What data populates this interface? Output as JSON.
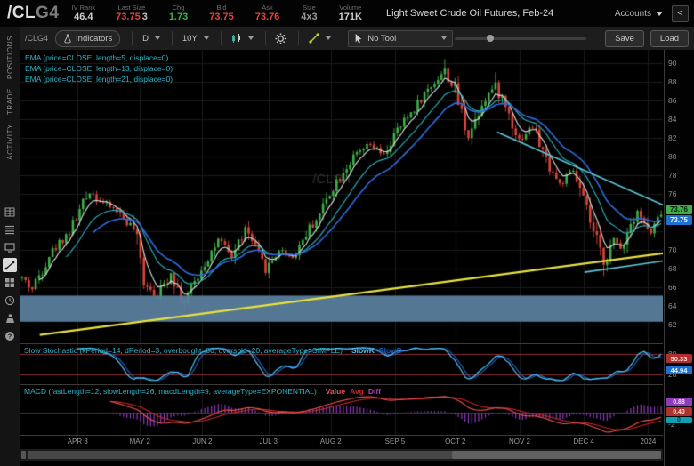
{
  "header": {
    "symbol": "/CL",
    "contract": "G4",
    "fields": [
      {
        "label": "IV Rank",
        "parts": [
          {
            "text": "46.4",
            "color": "#cfcfcf"
          }
        ]
      },
      {
        "label": "Last Size",
        "parts": [
          {
            "text": "73.75",
            "color": "#e0483a"
          },
          {
            "text": "3",
            "color": "#c2c2c2"
          }
        ]
      },
      {
        "label": "Chg",
        "parts": [
          {
            "text": "1.73",
            "color": "#3cb54a"
          }
        ]
      },
      {
        "label": "Bid",
        "parts": [
          {
            "text": "73.75",
            "color": "#e0483a"
          }
        ]
      },
      {
        "label": "Ask",
        "parts": [
          {
            "text": "73.76",
            "color": "#e0483a"
          }
        ]
      },
      {
        "label": "Size",
        "parts": [
          {
            "text": "4x3",
            "color": "#9a9a9a"
          }
        ]
      },
      {
        "label": "Volume",
        "parts": [
          {
            "text": "171K",
            "color": "#cfcfcf"
          }
        ]
      }
    ],
    "title": "Light Sweet Crude Oil Futures, Feb-24",
    "accounts_label": "Accounts",
    "collapse_label": "<"
  },
  "toolbar": {
    "symbol": "/CLG4",
    "indicators_label": "Indicators",
    "aggregation": "D",
    "range": "10Y",
    "no_tool_label": "No Tool",
    "save_label": "Save",
    "load_label": "Load"
  },
  "sidebar": {
    "tabs": [
      "POSITIONS",
      "TRADE",
      "ACTIVITY"
    ],
    "icons": [
      "table-icon",
      "list-icon",
      "monitor-icon",
      "chart-icon",
      "grid-icon",
      "clock-icon",
      "presenter-icon",
      "help-icon"
    ]
  },
  "chart": {
    "watermark": "/CLG4",
    "ema_labels": [
      "EMA (price=CLOSE, length=5, displace=0)",
      "EMA (price=CLOSE, length=13, displace=0)",
      "EMA (price=CLOSE, length=21, displace=0)"
    ],
    "stoch_label": "Slow Stochastic (kPeriod=14, dPeriod=3, overbought=80, oversold=20, averageType=SIMPLE)",
    "stoch_legend": [
      {
        "text": "SlowK",
        "color": "#4fc3f7"
      },
      {
        "text": "SlowD",
        "color": "#1e5fb8"
      }
    ],
    "macd_label": "MACD (fastLength=12, slowLength=26, macdLength=9, averageType=EXPONENTIAL)",
    "macd_legend": [
      {
        "text": "Value",
        "color": "#ef5350"
      },
      {
        "text": "Avg",
        "color": "#c62828"
      },
      {
        "text": "Diff",
        "color": "#ab47bc"
      }
    ],
    "axis": {
      "price_ticks": [
        90,
        88,
        86,
        84,
        82,
        80,
        78,
        76,
        70,
        68,
        66,
        64,
        62
      ],
      "ask_badge": {
        "value": "73.76",
        "color": "#3fae49",
        "text_color": "#05230a"
      },
      "last_badge": {
        "value": "73.75",
        "color": "#1f6fd0",
        "text_color": "#eaf2ff"
      },
      "stoch_ticks": [
        {
          "v": 80,
          "label": "80"
        },
        {
          "v": 20,
          "label": "20"
        }
      ],
      "stoch_badges": [
        {
          "value": 50.33,
          "label": "50.33",
          "color": "#b03030",
          "text_color": "#ffe2e2"
        },
        {
          "value": 44.94,
          "label": "44.94",
          "color": "#1f6fd0",
          "text_color": "#eaf2ff"
        }
      ],
      "macd_ticks": [
        {
          "v": 2,
          "label": "2"
        },
        {
          "v": -2,
          "label": "-2"
        }
      ],
      "macd_badges": [
        {
          "label": "0.88",
          "color": "#8e3bbf",
          "text_color": "#f3e5ff"
        },
        {
          "label": "0.40",
          "color": "#b03030",
          "text_color": "#ffe2e2"
        },
        {
          "label": "0",
          "color": "#0e9fb5",
          "text_color": "#03303a"
        }
      ]
    },
    "x_labels": [
      {
        "label": "APR 3",
        "f": 0.089
      },
      {
        "label": "MAY 2",
        "f": 0.186
      },
      {
        "label": "JUN 2",
        "f": 0.283
      },
      {
        "label": "JUL 3",
        "f": 0.386
      },
      {
        "label": "AUG 2",
        "f": 0.483
      },
      {
        "label": "SEP 5",
        "f": 0.583
      },
      {
        "label": "OCT 2",
        "f": 0.677
      },
      {
        "label": "NOV 2",
        "f": 0.777
      },
      {
        "label": "DEC 4",
        "f": 0.877
      },
      {
        "label": "2024",
        "f": 0.977
      }
    ]
  },
  "chart_data": {
    "type": "candlestick",
    "symbol": "/CLG4",
    "n": 190,
    "seed": 42,
    "y_min": 60.0,
    "y_max": 91.4,
    "last_close": 73.75,
    "price_anchors": [
      [
        0,
        67.0
      ],
      [
        3,
        65.8
      ],
      [
        8,
        69.5
      ],
      [
        14,
        72.0
      ],
      [
        20,
        76.3
      ],
      [
        24,
        75.0
      ],
      [
        28,
        74.2
      ],
      [
        33,
        72.2
      ],
      [
        36,
        66.8
      ],
      [
        40,
        65.0
      ],
      [
        44,
        67.6
      ],
      [
        48,
        64.3
      ],
      [
        53,
        68.0
      ],
      [
        58,
        71.0
      ],
      [
        62,
        69.2
      ],
      [
        66,
        72.3
      ],
      [
        72,
        67.8
      ],
      [
        76,
        70.0
      ],
      [
        80,
        69.2
      ],
      [
        84,
        71.8
      ],
      [
        88,
        73.8
      ],
      [
        91,
        76.2
      ],
      [
        95,
        78.5
      ],
      [
        99,
        80.2
      ],
      [
        103,
        81.2
      ],
      [
        107,
        80.0
      ],
      [
        110,
        82.2
      ],
      [
        114,
        84.2
      ],
      [
        118,
        86.2
      ],
      [
        122,
        88.0
      ],
      [
        125,
        89.2
      ],
      [
        128,
        87.0
      ],
      [
        132,
        82.2
      ],
      [
        136,
        85.8
      ],
      [
        140,
        87.6
      ],
      [
        144,
        84.6
      ],
      [
        147,
        81.8
      ],
      [
        151,
        83.2
      ],
      [
        155,
        79.6
      ],
      [
        159,
        77.0
      ],
      [
        163,
        78.4
      ],
      [
        166,
        75.2
      ],
      [
        169,
        71.8
      ],
      [
        172,
        68.6
      ],
      [
        175,
        71.0
      ],
      [
        177,
        70.2
      ],
      [
        180,
        72.9
      ],
      [
        182,
        74.3
      ],
      [
        184,
        72.7
      ],
      [
        186,
        71.7
      ],
      [
        188,
        73.1
      ],
      [
        189,
        73.75
      ]
    ],
    "wick_overrides": [
      {
        "i": 40,
        "l": 63.9
      },
      {
        "i": 48,
        "l": 63.4
      },
      {
        "i": 125,
        "h": 90.4
      },
      {
        "i": 140,
        "h": 89.0
      },
      {
        "i": 172,
        "l": 67.2
      }
    ],
    "band": {
      "p_top": 65.1,
      "p_bottom": 62.3,
      "color": "rgba(90,128,158,0.93)"
    },
    "trendlines": [
      {
        "f1": 0.03,
        "p1": 60.9,
        "f2": 1.02,
        "p2": 69.8,
        "color": "#e8e33f",
        "width": 2.2
      },
      {
        "f1": 0.742,
        "p1": 82.6,
        "f2": 1.02,
        "p2": 74.2,
        "color": "#5bc9d8",
        "width": 1.6
      },
      {
        "f1": 0.878,
        "p1": 67.6,
        "f2": 1.03,
        "p2": 69.1,
        "color": "#5bc9d8",
        "width": 1.6
      }
    ],
    "indicators": {
      "ema_lengths": [
        5,
        13,
        21
      ],
      "stoch": {
        "kPeriod": 14,
        "dPeriod": 3,
        "overbought": 80,
        "oversold": 20
      },
      "macd": {
        "fast": 12,
        "slow": 26,
        "signal": 9
      }
    },
    "colors": {
      "up": "#3fae49",
      "down": "#d6453a",
      "ema5": "#d9dde0",
      "ema13": "#2bb3c0",
      "ema21": "#2e6de0",
      "stoch_k": "#4fc3f7",
      "stoch_d": "#1e5fb8",
      "stoch_levels": "#8e2f2f",
      "macd_value": "#ef5350",
      "macd_avg": "#c62828",
      "macd_hist": "#8e3bbf",
      "grid": "#1b1b1b",
      "watermark": "#333333"
    }
  }
}
